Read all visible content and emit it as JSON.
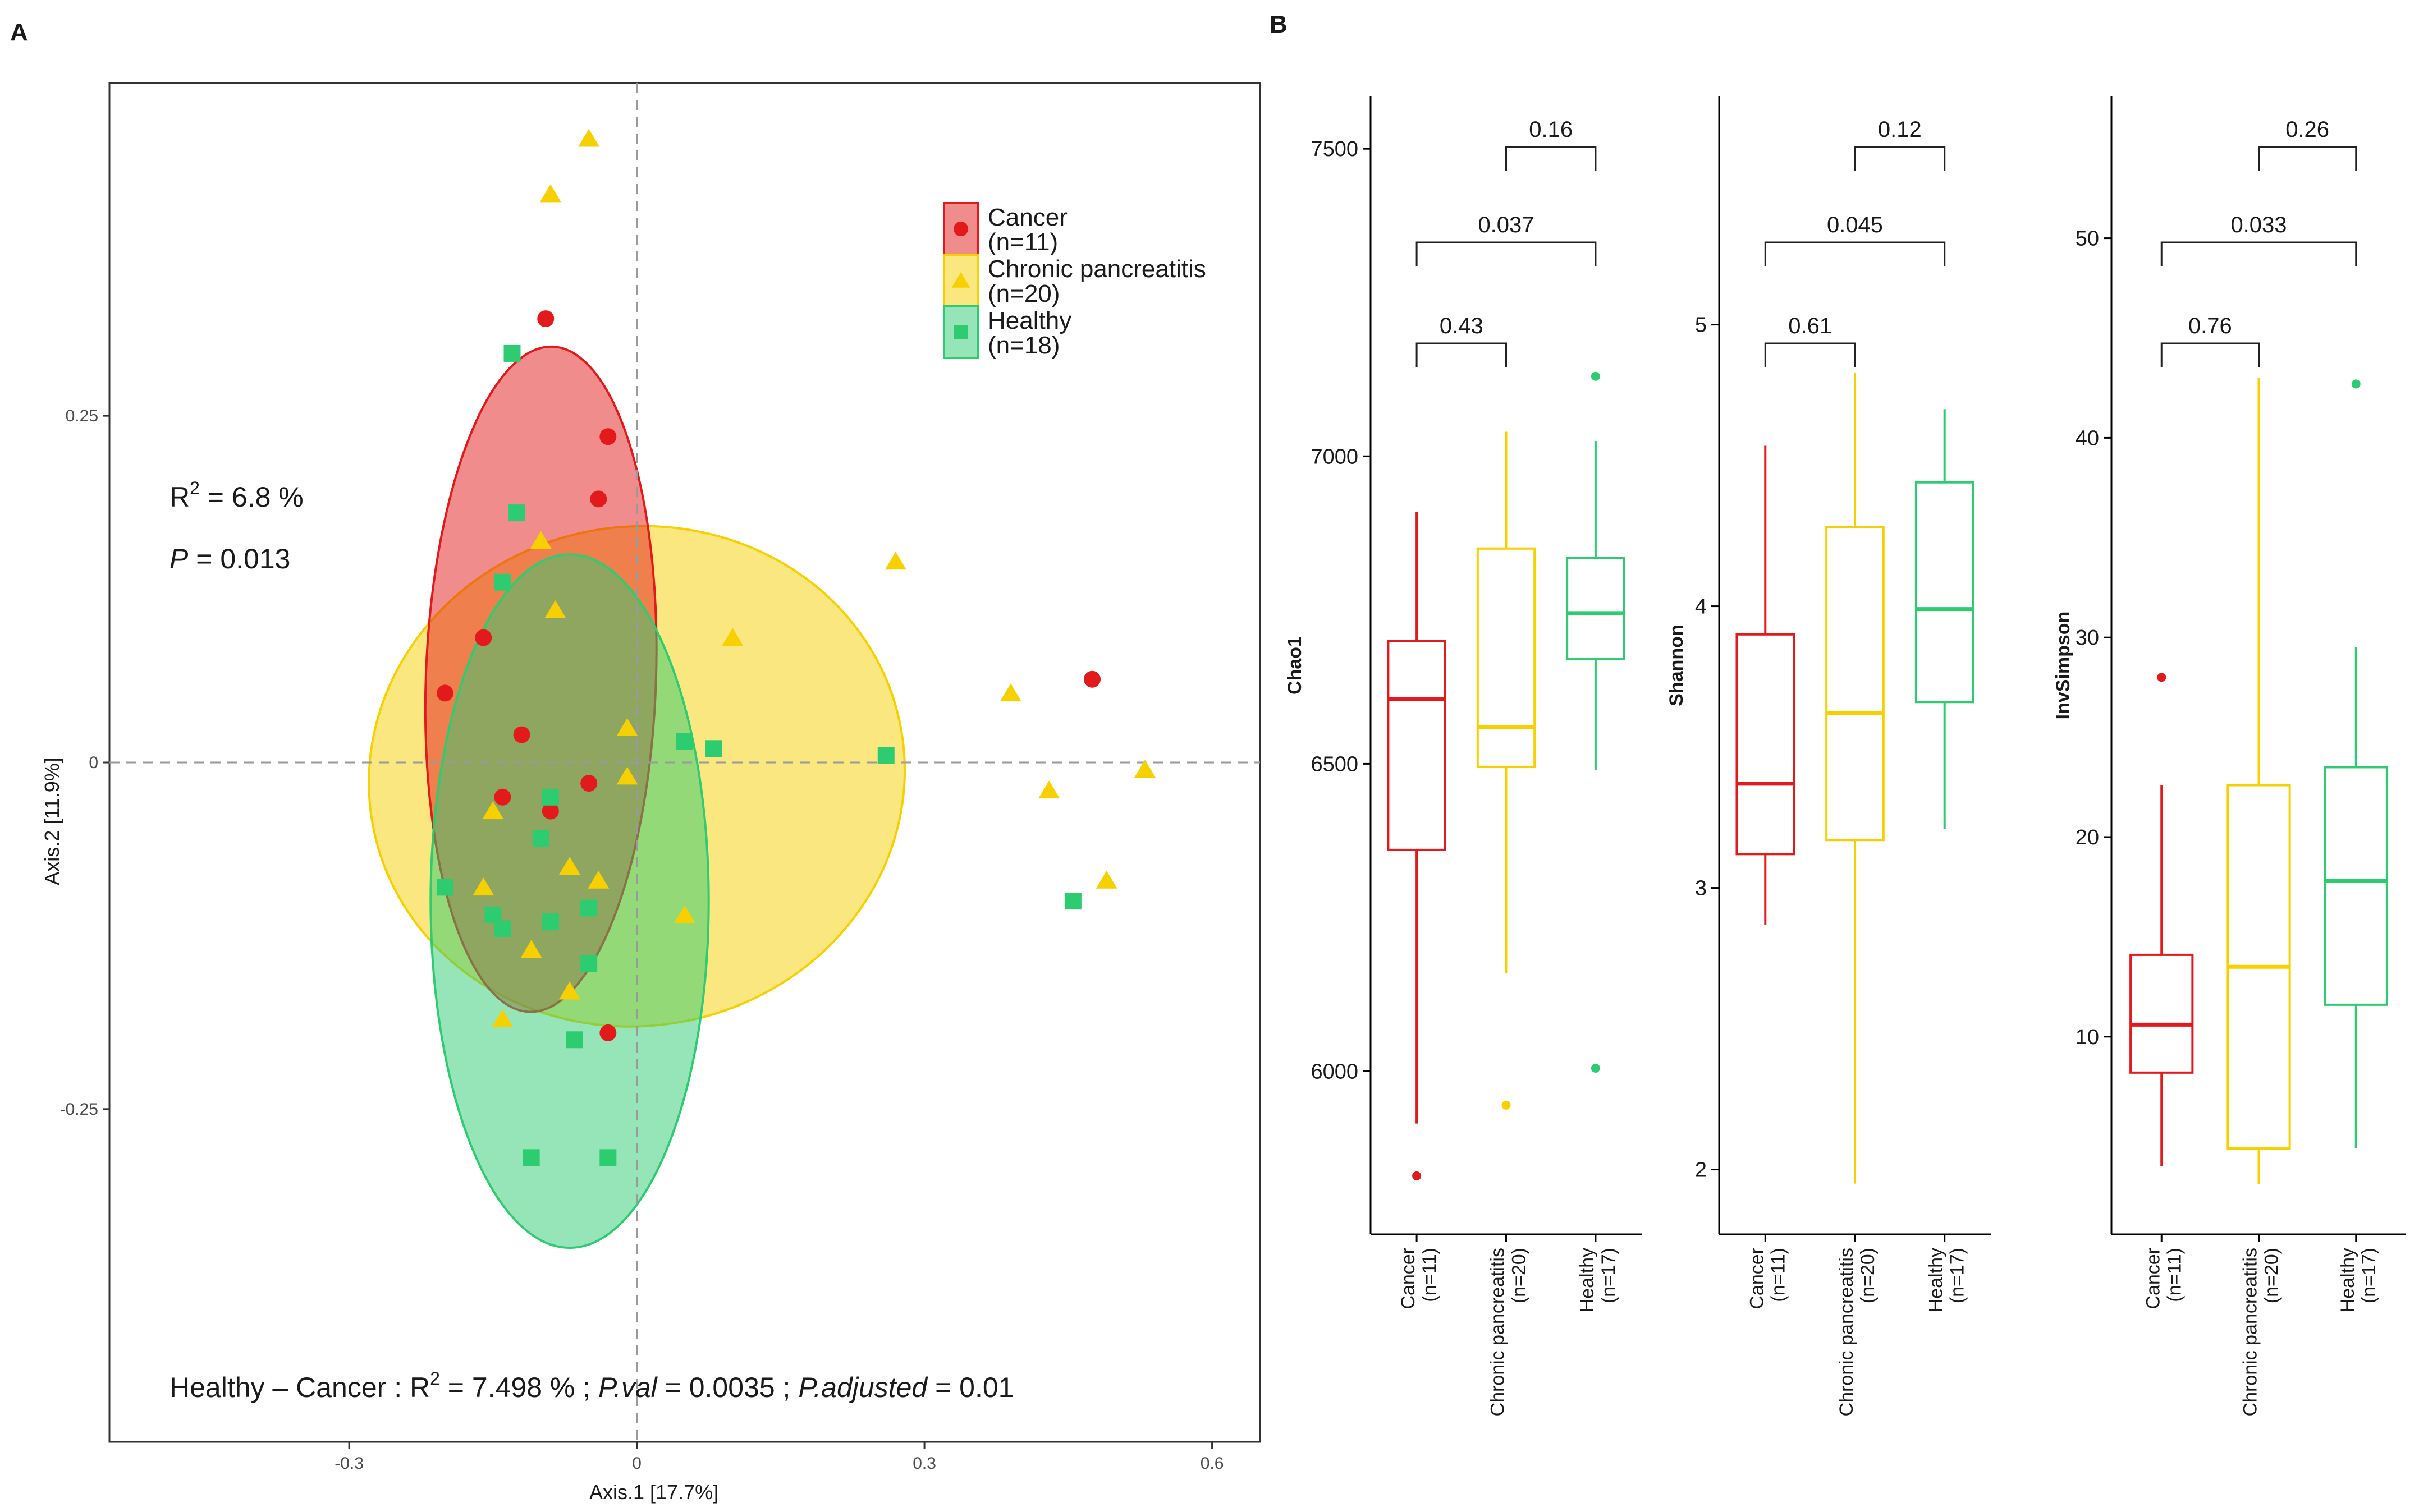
{
  "panel_labels": {
    "a": "A",
    "b": "B"
  },
  "colors": {
    "cancer": "#e31a1c",
    "chronic": "#f7d000",
    "healthy": "#2ecc71"
  },
  "stats": {
    "r2_prefix": "R",
    "r2_exp": "2",
    "r2_value": " = 6.8 %",
    "p_label": "P",
    "p_value": " = 0.013",
    "bottom_group": "Healthy – Cancer :  R",
    "bottom_exp": "2",
    "bottom_r2": " = 7.498 % ;  ",
    "bottom_pval_label": "P.val",
    "bottom_pval": " = 0.0035 ;  ",
    "bottom_padj_label": "P.adjusted",
    "bottom_padj": " = 0.01"
  },
  "legend": [
    {
      "name": "Cancer",
      "n": "(n=11)",
      "shape": "circle",
      "color_key": "cancer"
    },
    {
      "name": "Chronic pancreatitis",
      "n": "(n=20)",
      "shape": "triangle",
      "color_key": "chronic"
    },
    {
      "name": "Healthy",
      "n": "(n=18)",
      "shape": "square",
      "color_key": "healthy"
    }
  ],
  "chart_data": [
    {
      "type": "scatter",
      "title": "",
      "xlabel": "Axis.1   [17.7%]",
      "ylabel": "Axis.2   [11.9%]",
      "xlim": [
        -0.55,
        0.65
      ],
      "ylim": [
        -0.49,
        0.49
      ],
      "xticks": [
        -0.3,
        0,
        0.3,
        0.6
      ],
      "xtick_labels": [
        "-0.3",
        "0",
        "0.3",
        "0.6"
      ],
      "yticks": [
        0.25,
        0,
        -0.25
      ],
      "ytick_labels": [
        "0.25",
        "0",
        "-0.25"
      ],
      "ellipses": [
        {
          "group": "chronic",
          "cx": 0.0,
          "cy": -0.01,
          "rx": 0.28,
          "ry": 0.18,
          "angle": -10
        },
        {
          "group": "cancer",
          "cx": -0.1,
          "cy": 0.06,
          "rx": 0.12,
          "ry": 0.24,
          "angle": 2
        },
        {
          "group": "healthy",
          "cx": -0.07,
          "cy": -0.1,
          "rx": 0.145,
          "ry": 0.25,
          "angle": 0
        }
      ],
      "series": [
        {
          "name": "Cancer",
          "shape": "circle",
          "color_key": "cancer",
          "points": [
            [
              -0.095,
              0.32
            ],
            [
              -0.03,
              0.235
            ],
            [
              -0.04,
              0.19
            ],
            [
              -0.16,
              0.09
            ],
            [
              -0.2,
              0.05
            ],
            [
              0.475,
              0.06
            ],
            [
              -0.12,
              0.02
            ],
            [
              -0.14,
              -0.025
            ],
            [
              -0.05,
              -0.015
            ],
            [
              -0.09,
              -0.035
            ],
            [
              -0.03,
              -0.195
            ]
          ]
        },
        {
          "name": "Chronic pancreatitis",
          "shape": "triangle",
          "color_key": "chronic",
          "points": [
            [
              -0.05,
              0.45
            ],
            [
              -0.09,
              0.41
            ],
            [
              -0.1,
              0.16
            ],
            [
              -0.085,
              0.11
            ],
            [
              0.27,
              0.145
            ],
            [
              0.1,
              0.09
            ],
            [
              0.39,
              0.05
            ],
            [
              -0.01,
              0.025
            ],
            [
              -0.01,
              -0.01
            ],
            [
              0.43,
              -0.02
            ],
            [
              0.53,
              -0.005
            ],
            [
              -0.15,
              -0.035
            ],
            [
              -0.07,
              -0.075
            ],
            [
              -0.16,
              -0.09
            ],
            [
              0.05,
              -0.11
            ],
            [
              0.49,
              -0.085
            ],
            [
              -0.11,
              -0.135
            ],
            [
              -0.07,
              -0.165
            ],
            [
              -0.14,
              -0.185
            ],
            [
              -0.04,
              -0.085
            ]
          ]
        },
        {
          "name": "Healthy",
          "shape": "square",
          "color_key": "healthy",
          "points": [
            [
              -0.13,
              0.295
            ],
            [
              -0.125,
              0.18
            ],
            [
              -0.14,
              0.13
            ],
            [
              0.05,
              0.015
            ],
            [
              0.08,
              0.01
            ],
            [
              0.26,
              0.005
            ],
            [
              -0.09,
              -0.025
            ],
            [
              -0.1,
              -0.055
            ],
            [
              -0.2,
              -0.09
            ],
            [
              -0.15,
              -0.11
            ],
            [
              -0.14,
              -0.12
            ],
            [
              -0.09,
              -0.115
            ],
            [
              -0.05,
              -0.105
            ],
            [
              -0.05,
              -0.145
            ],
            [
              -0.065,
              -0.2
            ],
            [
              -0.11,
              -0.285
            ],
            [
              -0.03,
              -0.285
            ],
            [
              0.455,
              -0.1
            ]
          ]
        }
      ]
    },
    {
      "type": "box",
      "ylabel": "Chao1",
      "ylim": [
        5735,
        7585
      ],
      "yticks": [
        6000,
        6500,
        7000,
        7500
      ],
      "categories": [
        "Cancer",
        "Chronic pancreatitis",
        "Healthy"
      ],
      "category_n": [
        "(n=11)",
        "(n=20)",
        "(n=17)"
      ],
      "boxes": [
        {
          "color_key": "cancer",
          "min": 5915,
          "q1": 6360,
          "median": 6605,
          "q3": 6700,
          "max": 6910,
          "outliers": [
            5830
          ]
        },
        {
          "color_key": "chronic",
          "min": 6160,
          "q1": 6495,
          "median": 6560,
          "q3": 6850,
          "max": 7040,
          "outliers": [
            5945
          ]
        },
        {
          "color_key": "healthy",
          "min": 6490,
          "q1": 6670,
          "median": 6745,
          "q3": 6835,
          "max": 7025,
          "outliers": [
            7130,
            6005
          ]
        }
      ],
      "brackets": [
        {
          "from": 1,
          "to": 2,
          "label": "0.16",
          "level": 2
        },
        {
          "from": 0,
          "to": 2,
          "label": "0.037",
          "level": 1
        },
        {
          "from": 0,
          "to": 1,
          "label": "0.43",
          "level": 0
        }
      ]
    },
    {
      "type": "box",
      "ylabel": "Shannon",
      "ylim": [
        1.77,
        5.81
      ],
      "yticks": [
        2,
        3,
        4,
        5
      ],
      "categories": [
        "Cancer",
        "Chronic pancreatitis",
        "Healthy"
      ],
      "category_n": [
        "(n=11)",
        "(n=20)",
        "(n=17)"
      ],
      "boxes": [
        {
          "color_key": "cancer",
          "min": 2.87,
          "q1": 3.12,
          "median": 3.37,
          "q3": 3.9,
          "max": 4.57,
          "outliers": []
        },
        {
          "color_key": "chronic",
          "min": 1.95,
          "q1": 3.17,
          "median": 3.62,
          "q3": 4.28,
          "max": 4.83,
          "outliers": []
        },
        {
          "color_key": "healthy",
          "min": 3.21,
          "q1": 3.66,
          "median": 3.99,
          "q3": 4.44,
          "max": 4.7,
          "outliers": []
        }
      ],
      "brackets": [
        {
          "from": 1,
          "to": 2,
          "label": "0.12",
          "level": 2
        },
        {
          "from": 0,
          "to": 2,
          "label": "0.045",
          "level": 1
        },
        {
          "from": 0,
          "to": 1,
          "label": "0.61",
          "level": 0
        }
      ]
    },
    {
      "type": "box",
      "ylabel": "InvSimpson",
      "ylim": [
        0.1,
        57.1
      ],
      "yticks": [
        10,
        20,
        30,
        40,
        50
      ],
      "categories": [
        "Cancer",
        "Chronic pancreatitis",
        "Healthy"
      ],
      "category_n": [
        "(n=11)",
        "(n=20)",
        "(n=17)"
      ],
      "boxes": [
        {
          "color_key": "cancer",
          "min": 3.5,
          "q1": 8.2,
          "median": 10.6,
          "q3": 14.1,
          "max": 22.6,
          "outliers": [
            28
          ]
        },
        {
          "color_key": "chronic",
          "min": 2.6,
          "q1": 4.4,
          "median": 13.5,
          "q3": 22.6,
          "max": 43,
          "outliers": []
        },
        {
          "color_key": "healthy",
          "min": 4.4,
          "q1": 11.6,
          "median": 17.8,
          "q3": 23.5,
          "max": 29.5,
          "outliers": [
            42.7
          ]
        }
      ],
      "brackets": [
        {
          "from": 1,
          "to": 2,
          "label": "0.26",
          "level": 2
        },
        {
          "from": 0,
          "to": 2,
          "label": "0.033",
          "level": 1
        },
        {
          "from": 0,
          "to": 1,
          "label": "0.76",
          "level": 0
        }
      ]
    }
  ]
}
